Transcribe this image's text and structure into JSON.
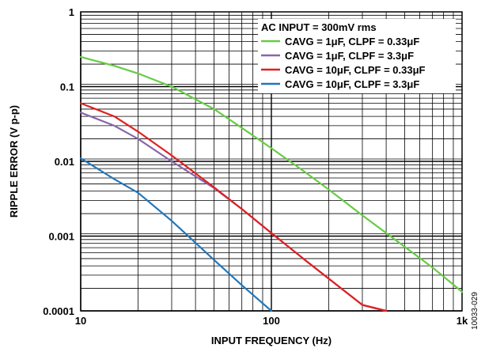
{
  "chart_data": {
    "type": "line",
    "xlabel": "INPUT FREQUENCY (Hz)",
    "ylabel": "RIPPLE ERROR (V p-p)",
    "xscale": "log",
    "yscale": "log",
    "xlim": [
      10,
      1000
    ],
    "ylim": [
      0.0001,
      1
    ],
    "xticks": [
      "10",
      "100",
      "1k"
    ],
    "yticks": [
      "1",
      "0.1",
      "0.01",
      "0.001",
      "0.0001"
    ],
    "grid": true,
    "legend": {
      "title": "AC INPUT = 300mV rms",
      "position": "top-right"
    },
    "series": [
      {
        "name": "CAVG = 1μF, CLPF = 0.33μF",
        "color": "#66cc44",
        "x": [
          10,
          15,
          20,
          30,
          50,
          70,
          100,
          150,
          200,
          300,
          500,
          700,
          1000
        ],
        "y": [
          0.25,
          0.19,
          0.15,
          0.1,
          0.05,
          0.028,
          0.015,
          0.0072,
          0.0042,
          0.0019,
          0.00072,
          0.00038,
          0.00018
        ]
      },
      {
        "name": "CAVG = 1μF, CLPF = 3.3μF",
        "color": "#8866aa",
        "x": [
          10,
          15,
          20,
          30,
          50,
          70,
          100,
          150,
          200,
          300,
          400
        ],
        "y": [
          0.045,
          0.03,
          0.02,
          0.01,
          0.0044,
          0.0023,
          0.0011,
          0.00048,
          0.00027,
          0.00012,
          0.0001
        ]
      },
      {
        "name": "CAVG = 10μF, CLPF = 0.33μF",
        "color": "#e02020",
        "x": [
          10,
          15,
          20,
          30,
          50,
          70,
          100,
          150,
          200,
          300,
          400
        ],
        "y": [
          0.06,
          0.04,
          0.025,
          0.012,
          0.0045,
          0.0023,
          0.0011,
          0.00048,
          0.00027,
          0.00012,
          0.0001
        ]
      },
      {
        "name": "CAVG = 10μF, CLPF = 3.3μF",
        "color": "#2277bb",
        "x": [
          10,
          15,
          20,
          30,
          50,
          70,
          100
        ],
        "y": [
          0.011,
          0.0058,
          0.0038,
          0.0016,
          0.00048,
          0.00022,
          0.0001
        ]
      }
    ]
  },
  "figure_id": "10033-029"
}
